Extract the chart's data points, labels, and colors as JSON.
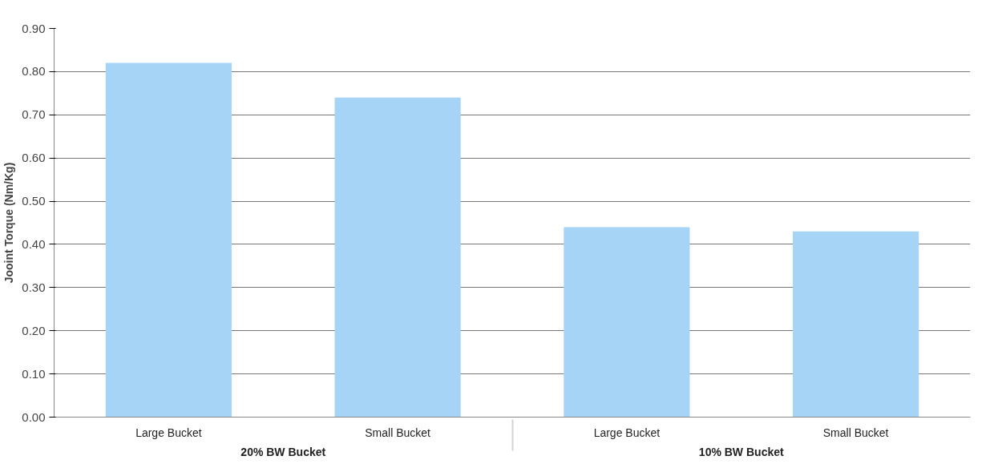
{
  "chart_data": {
    "type": "bar",
    "ylabel": "Jooint Torque (Nm/Kg)",
    "categories": [
      "Large Bucket",
      "Small Bucket",
      "Large Bucket",
      "Small Bucket"
    ],
    "annotations": [
      "20% BW Bucket",
      "10% BW Bucket"
    ],
    "values": [
      0.82,
      0.74,
      0.44,
      0.43
    ],
    "color": "#a6d4f7",
    "ylim": [
      0,
      0.9
    ],
    "yticks": [
      {
        "value": 0,
        "label": "0.00"
      },
      {
        "value": 0.1,
        "label": "0.10"
      },
      {
        "value": 0.2,
        "label": "0.20"
      },
      {
        "value": 0.3,
        "label": "0.30"
      },
      {
        "value": 0.4,
        "label": "0.40"
      },
      {
        "value": 0.5,
        "label": "0.50"
      },
      {
        "value": 0.6,
        "label": "0.60"
      },
      {
        "value": 0.7,
        "label": "0.70"
      },
      {
        "value": 0.8,
        "label": "0.80"
      },
      {
        "value": 0.9,
        "label": "0.90"
      }
    ],
    "grid": "y"
  }
}
